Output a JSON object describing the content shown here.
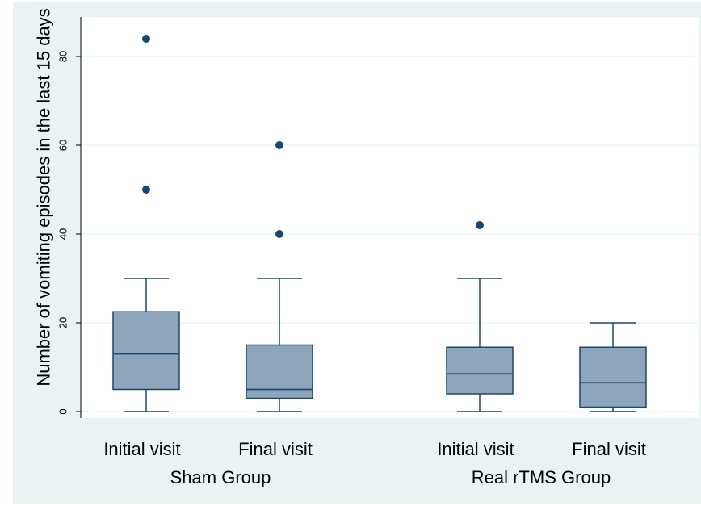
{
  "chart_data": {
    "type": "box",
    "ylabel": "Number of vomiting episodes in the last 15 days",
    "ylim": [
      0,
      88
    ],
    "yticks": [
      0,
      20,
      40,
      60,
      80
    ],
    "grid": true,
    "groups": [
      "Sham Group",
      "Real rTMS Group"
    ],
    "boxes": [
      {
        "group": "Sham Group",
        "label": "Initial visit",
        "whisker_low": 0,
        "q1": 5,
        "median": 13,
        "q3": 22.5,
        "whisker_high": 30,
        "outliers": [
          50,
          84
        ]
      },
      {
        "group": "Sham Group",
        "label": "Final visit",
        "whisker_low": 0,
        "q1": 3,
        "median": 5,
        "q3": 15,
        "whisker_high": 30,
        "outliers": [
          40,
          60
        ]
      },
      {
        "group": "Real rTMS Group",
        "label": "Initial visit",
        "whisker_low": 0,
        "q1": 4,
        "median": 8.5,
        "q3": 14.5,
        "whisker_high": 30,
        "outliers": [
          42
        ]
      },
      {
        "group": "Real rTMS Group",
        "label": "Final visit",
        "whisker_low": 0,
        "q1": 1,
        "median": 6.5,
        "q3": 14.5,
        "whisker_high": 20,
        "outliers": []
      }
    ],
    "colors": {
      "outer_bg": "#eaf2f3",
      "plot_bg": "#ffffff",
      "box_fill": "#8ea5bc",
      "box_stroke": "#1a476f",
      "point": "#1a476f",
      "grid": "#eaf2f3",
      "axis": "#000000"
    }
  }
}
